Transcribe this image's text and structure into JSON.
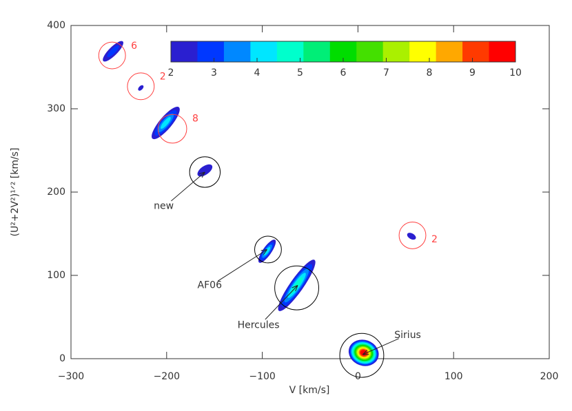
{
  "chart_data": {
    "type": "contour",
    "xlabel": "V [km/s]",
    "ylabel": "(U²+2V²)¹ᐟ² [km/s]",
    "xlim": [
      -300,
      200
    ],
    "ylim": [
      0,
      400
    ],
    "xticks": [
      {
        "value": -300,
        "label": "−300"
      },
      {
        "value": -200,
        "label": "−200"
      },
      {
        "value": -100,
        "label": "−100"
      },
      0,
      100,
      200
    ],
    "yticks": [
      0,
      100,
      200,
      300,
      400
    ],
    "clim": [
      2,
      10
    ],
    "cticks": [
      2,
      3,
      4,
      5,
      6,
      7,
      8,
      9,
      10
    ],
    "colors": [
      "#2a1fd0",
      "#0038ff",
      "#0088ff",
      "#00e6ff",
      "#00ffcc",
      "#00ee77",
      "#00dd00",
      "#44e000",
      "#aaf000",
      "#ffff00",
      "#ffa800",
      "#ff3a00",
      "#ff0000"
    ],
    "blobs": [
      {
        "x": -256,
        "y": 369,
        "length": 29,
        "width": 9,
        "angle": -45,
        "peak": 3
      },
      {
        "x": -227,
        "y": 325,
        "length": 7,
        "width": 4,
        "angle": -45,
        "peak": 2
      },
      {
        "x": -201,
        "y": 283,
        "length": 43,
        "width": 13,
        "angle": -50,
        "peak": 4
      },
      {
        "x": -160,
        "y": 226,
        "length": 18,
        "width": 9,
        "angle": -35,
        "peak": 2
      },
      {
        "x": 56,
        "y": 147,
        "length": 10,
        "width": 6,
        "angle": 30,
        "peak": 2
      },
      {
        "x": -95,
        "y": 129,
        "length": 29,
        "width": 9,
        "angle": -55,
        "peak": 4
      },
      {
        "x": -64,
        "y": 88,
        "length": 65,
        "width": 14,
        "angle": -55,
        "peak": 5
      },
      {
        "x": 6,
        "y": 7,
        "length": 32,
        "width": 27,
        "angle": 20,
        "peak": 10
      }
    ],
    "circles": [
      {
        "x": -257,
        "y": 364,
        "r": 14,
        "color": "#ff4040",
        "label": "6"
      },
      {
        "x": -227,
        "y": 327,
        "r": 14,
        "color": "#ff4040",
        "label": "2"
      },
      {
        "x": -194,
        "y": 276,
        "r": 15,
        "color": "#ff4040",
        "label": "8"
      },
      {
        "x": 57,
        "y": 148,
        "r": 14,
        "color": "#ff4040",
        "label": "2"
      },
      {
        "x": -160,
        "y": 224,
        "r": 16,
        "color": "#000000"
      },
      {
        "x": -94,
        "y": 131,
        "r": 14,
        "color": "#000000"
      },
      {
        "x": -64,
        "y": 85,
        "r": 23,
        "color": "#000000"
      },
      {
        "x": 4,
        "y": 4,
        "r": 23,
        "color": "#000000"
      }
    ],
    "annotations": [
      {
        "text": "new",
        "text_at": [
          -203,
          183
        ],
        "x": -160,
        "y": 224
      },
      {
        "text": "AF06",
        "text_at": [
          -155,
          88
        ],
        "x": -95,
        "y": 131
      },
      {
        "text": "Hercules",
        "text_at": [
          -104,
          40
        ],
        "x": -63,
        "y": 88
      },
      {
        "text": "Sirius",
        "text_at": [
          52,
          28
        ],
        "x": 5,
        "y": 5
      }
    ]
  }
}
